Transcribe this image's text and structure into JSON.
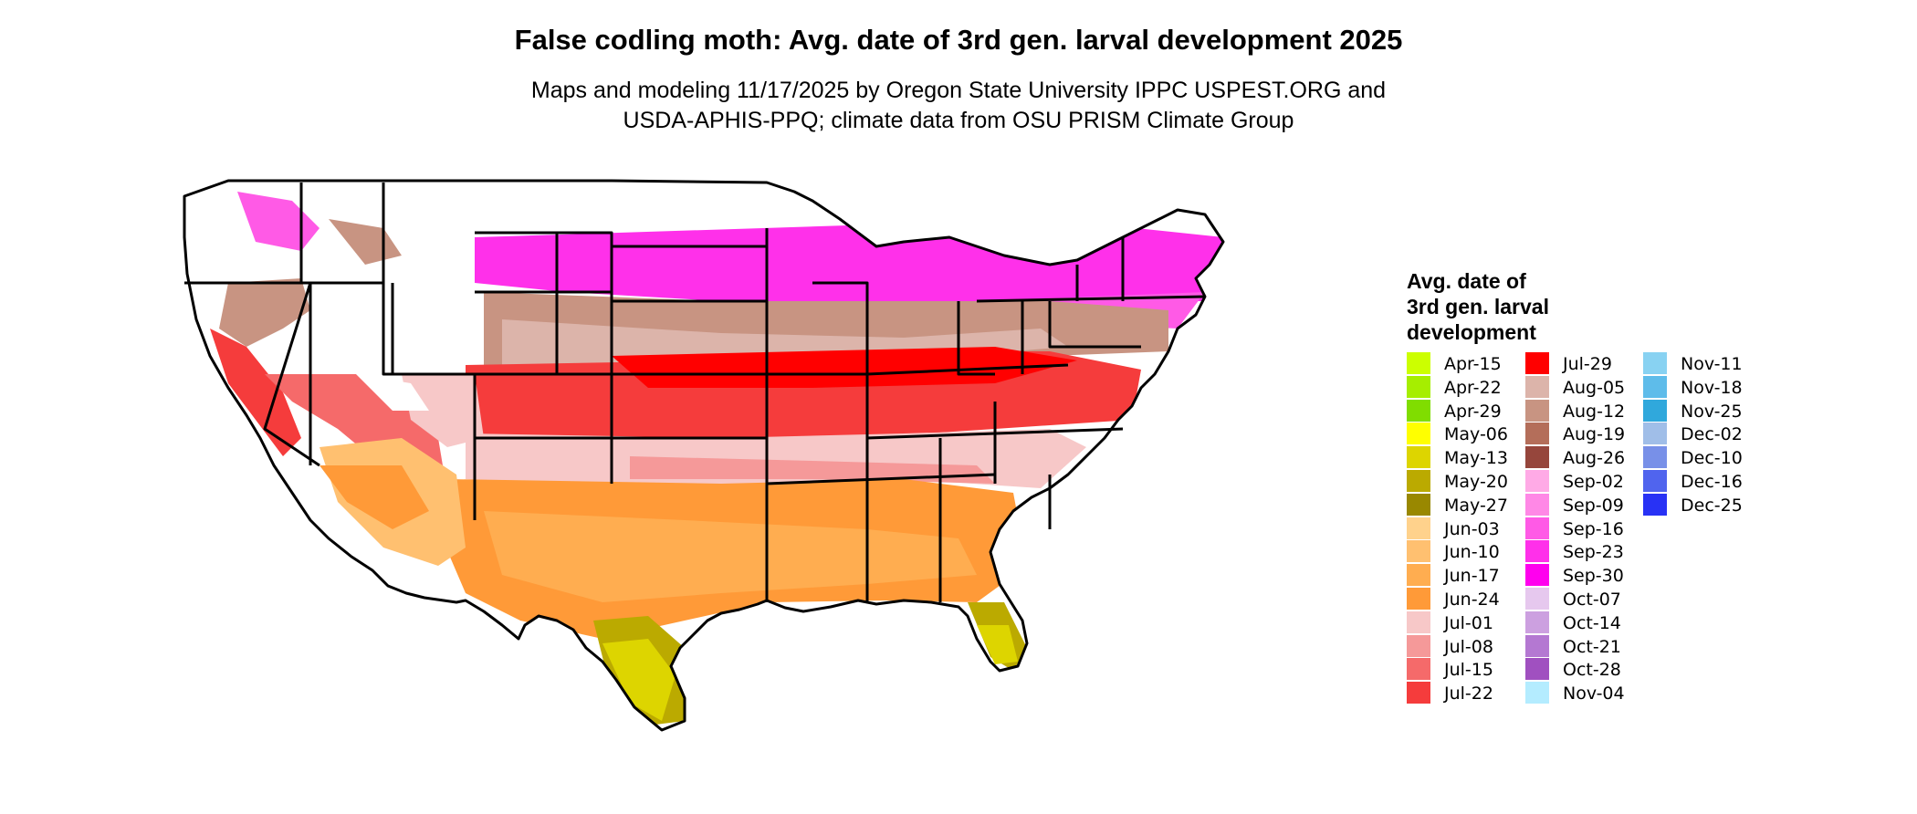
{
  "header": {
    "title": "False codling moth: Avg. date of 3rd gen. larval development 2025",
    "subtitle_line1": "Maps and modeling 11/17/2025 by Oregon State University IPPC USPEST.ORG and",
    "subtitle_line2": "USDA-APHIS-PPQ; climate data from OSU PRISM Climate Group"
  },
  "legend": {
    "title_line1": "Avg. date of",
    "title_line2": "3rd gen. larval",
    "title_line3": "development",
    "columns": [
      [
        {
          "label": "Apr-15",
          "color": "#ccff00"
        },
        {
          "label": "Apr-22",
          "color": "#a6ee00"
        },
        {
          "label": "Apr-29",
          "color": "#80dd00"
        },
        {
          "label": "May-06",
          "color": "#ffff00"
        },
        {
          "label": "May-13",
          "color": "#ddd500"
        },
        {
          "label": "May-20",
          "color": "#bbaa00"
        },
        {
          "label": "May-27",
          "color": "#998800"
        },
        {
          "label": "Jun-03",
          "color": "#ffd28c"
        },
        {
          "label": "Jun-10",
          "color": "#ffc070"
        },
        {
          "label": "Jun-17",
          "color": "#ffad50"
        },
        {
          "label": "Jun-24",
          "color": "#ff9a38"
        },
        {
          "label": "Jul-01",
          "color": "#f7c8c8"
        },
        {
          "label": "Jul-08",
          "color": "#f59999"
        },
        {
          "label": "Jul-15",
          "color": "#f56a6a"
        },
        {
          "label": "Jul-22",
          "color": "#f53c3c"
        }
      ],
      [
        {
          "label": "Jul-29",
          "color": "#ff0000"
        },
        {
          "label": "Aug-05",
          "color": "#dcb4aa"
        },
        {
          "label": "Aug-12",
          "color": "#c89482"
        },
        {
          "label": "Aug-19",
          "color": "#b46e5a"
        },
        {
          "label": "Aug-26",
          "color": "#96463c"
        },
        {
          "label": "Sep-02",
          "color": "#ffaae6"
        },
        {
          "label": "Sep-09",
          "color": "#ff88e6"
        },
        {
          "label": "Sep-16",
          "color": "#ff5ae6"
        },
        {
          "label": "Sep-23",
          "color": "#ff30ea"
        },
        {
          "label": "Sep-30",
          "color": "#ff00ee"
        },
        {
          "label": "Oct-07",
          "color": "#e6c8ee"
        },
        {
          "label": "Oct-14",
          "color": "#cca0e0"
        },
        {
          "label": "Oct-21",
          "color": "#b478d2"
        },
        {
          "label": "Oct-28",
          "color": "#a050c0"
        },
        {
          "label": "Nov-04",
          "color": "#b4ecff"
        }
      ],
      [
        {
          "label": "Nov-11",
          "color": "#88d2f2"
        },
        {
          "label": "Nov-18",
          "color": "#5ebcea"
        },
        {
          "label": "Nov-25",
          "color": "#30a8dc"
        },
        {
          "label": "Dec-02",
          "color": "#a0bee8"
        },
        {
          "label": "Dec-10",
          "color": "#7890e8"
        },
        {
          "label": "Dec-16",
          "color": "#5064ee"
        },
        {
          "label": "Dec-25",
          "color": "#2832f5"
        }
      ]
    ]
  }
}
